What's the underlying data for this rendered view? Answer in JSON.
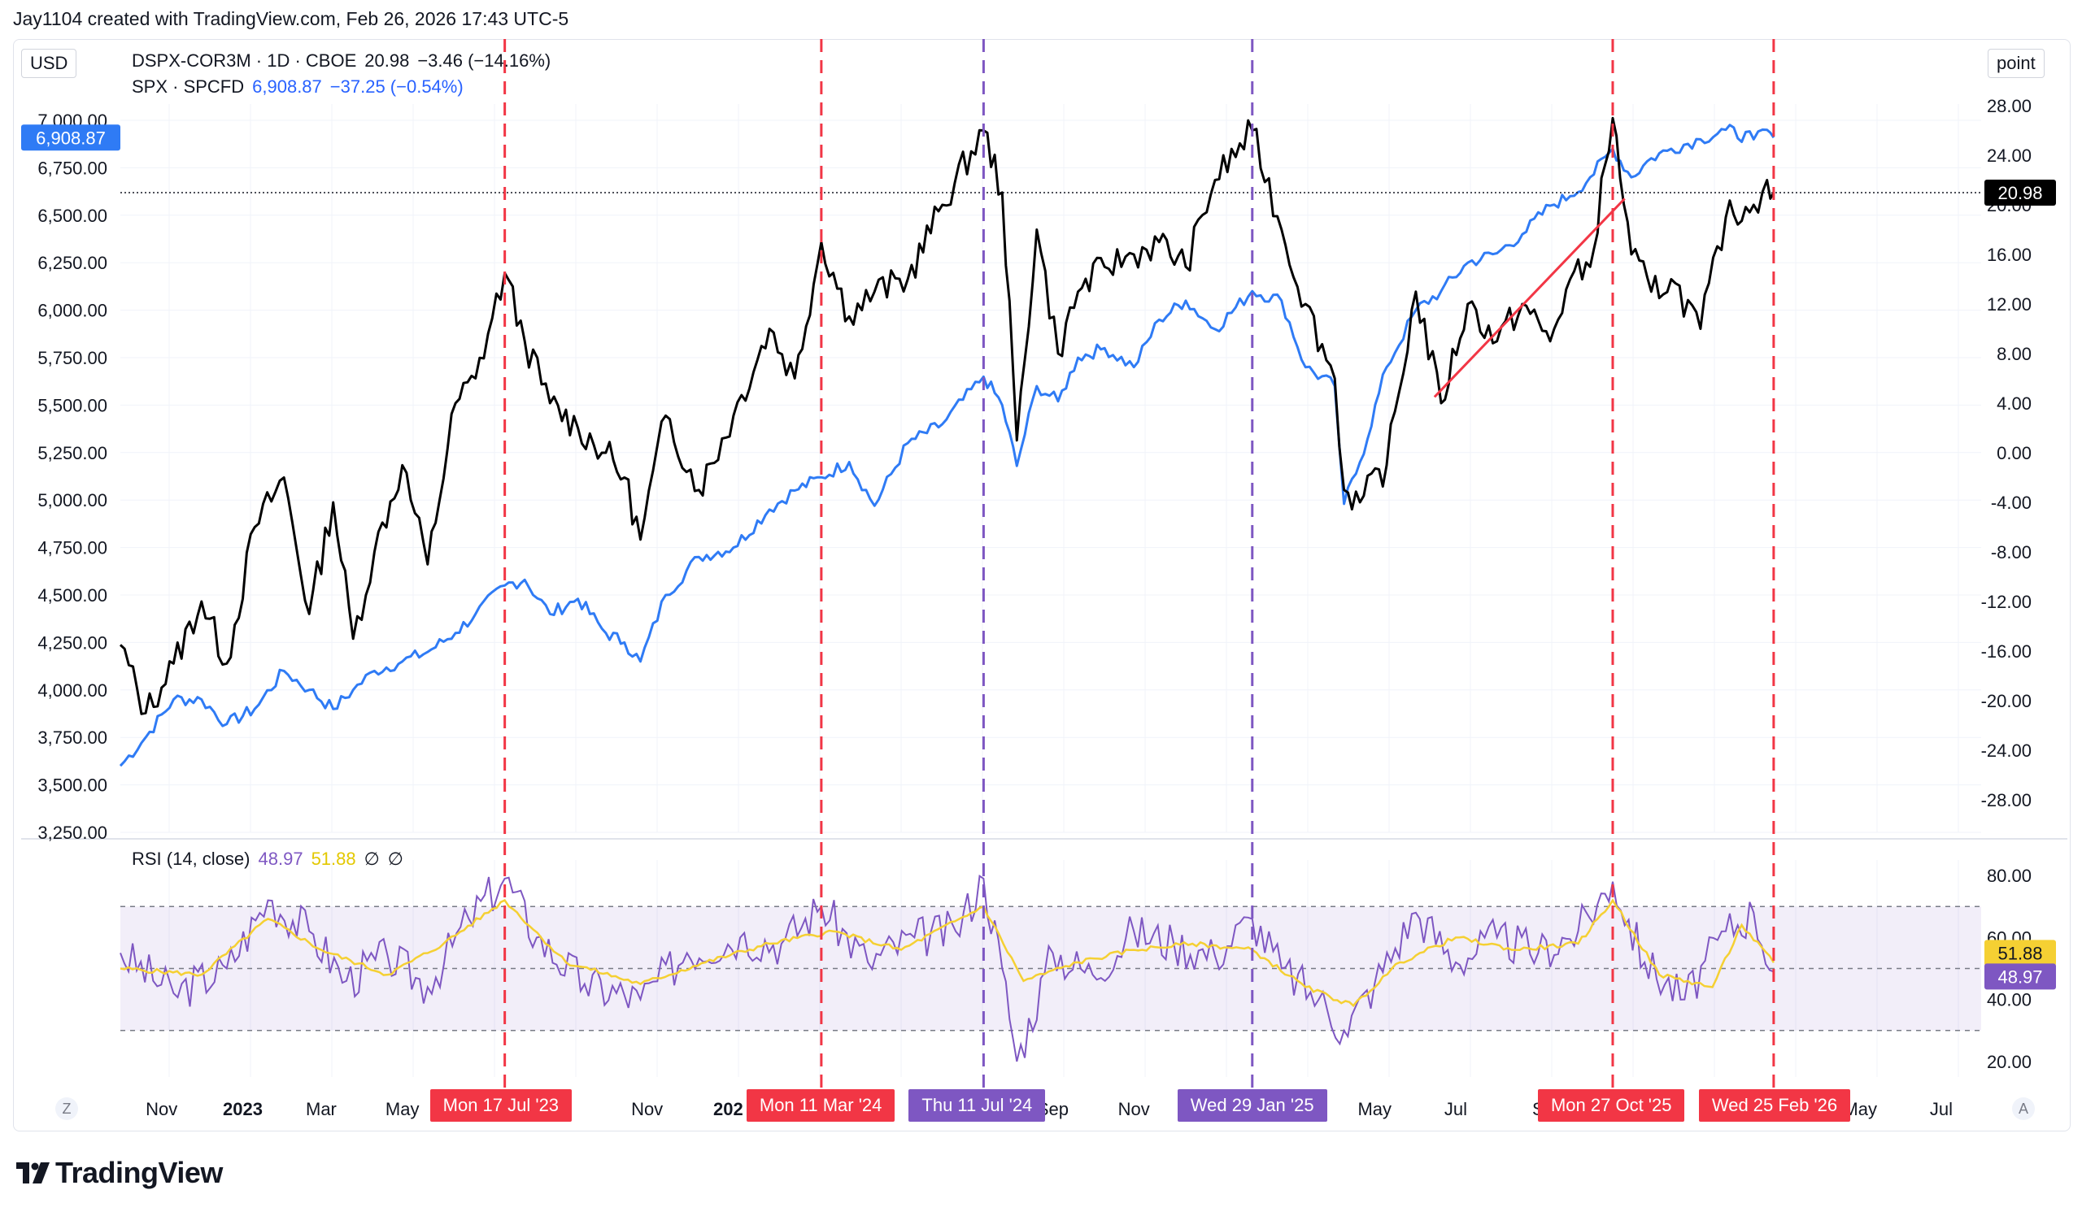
{
  "header": {
    "credit": "Jay1104 created with TradingView.com, Feb 26, 2026 17:43 UTC-5"
  },
  "toolbar": {
    "currency": "USD",
    "scale_mode": "point"
  },
  "legend": {
    "series1": {
      "symbol": "DSPX-COR3M · 1D · CBOE",
      "last": "20.98",
      "change": "−3.46 (−14.16%)",
      "color": "#000000"
    },
    "series2": {
      "symbol": "SPX · SPCFD",
      "last": "6,908.87",
      "change": "−37.25 (−0.54%)",
      "color": "#2962ff"
    },
    "rsi": {
      "label": "RSI (14, close)",
      "value": "48.97",
      "ma": "51.88",
      "extra1": "∅",
      "extra2": "∅"
    }
  },
  "badges": {
    "spx_last": "6,908.87",
    "dspx_last": "20.98",
    "rsi_ma": "51.88",
    "rsi_last": "48.97"
  },
  "colors": {
    "spx": "#2f7bf5",
    "dspx": "#000000",
    "rsi": "#7e57c2",
    "rsi_ma": "#f5d033",
    "red_marker": "#f23645",
    "purple_marker": "#7e57c2",
    "trendline": "#f23645"
  },
  "time_axis": {
    "labels": [
      "Nov",
      "2023",
      "Mar",
      "May",
      "Nov",
      "202",
      "Sep",
      "Nov",
      "May",
      "Jul",
      "S",
      "May",
      "Jul"
    ],
    "bold": [
      "2023",
      "202"
    ],
    "corner_left": "Z",
    "corner_right": "A"
  },
  "markers": [
    {
      "date_label": "Mon 17 Jul '23",
      "color": "red"
    },
    {
      "date_label": "Mon 11 Mar '24",
      "color": "red"
    },
    {
      "date_label": "Thu 11 Jul '24",
      "color": "purple"
    },
    {
      "date_label": "Wed 29 Jan '25",
      "color": "purple"
    },
    {
      "date_label": "Mon 27 Oct '25",
      "color": "red"
    },
    {
      "date_label": "Wed 25 Feb '26",
      "color": "red"
    }
  ],
  "chart_data": [
    {
      "type": "line",
      "title": "",
      "x_range": [
        "2022-10-01",
        "2026-07-31"
      ],
      "left_axis": {
        "ticks": [
          "3,250.00",
          "3,500.00",
          "3,750.00",
          "4,000.00",
          "4,250.00",
          "4,500.00",
          "4,750.00",
          "5,000.00",
          "5,250.00",
          "5,500.00",
          "5,750.00",
          "6,000.00",
          "6,250.00",
          "6,500.00",
          "6,750.00",
          "7,000.00"
        ],
        "ylim": [
          3250,
          7000
        ]
      },
      "right_axis": {
        "ticks": [
          "28.00",
          "24.00",
          "20.00",
          "16.00",
          "12.00",
          "8.00",
          "4.00",
          "0.00",
          "-4.00",
          "-8.00",
          "-12.00",
          "-16.00",
          "-20.00",
          "-24.00",
          "-28.00"
        ],
        "ylim": [
          -28,
          28
        ]
      },
      "series": [
        {
          "name": "DSPX-COR3M",
          "axis": "right",
          "x": [
            "2022-10-01",
            "2022-10-20",
            "2022-11-10",
            "2022-12-01",
            "2022-12-20",
            "2023-01-10",
            "2023-02-01",
            "2023-02-20",
            "2023-03-10",
            "2023-03-25",
            "2023-04-10",
            "2023-05-01",
            "2023-05-20",
            "2023-06-10",
            "2023-06-25",
            "2023-07-17",
            "2023-08-01",
            "2023-08-20",
            "2023-09-10",
            "2023-10-01",
            "2023-10-15",
            "2023-10-27",
            "2023-11-15",
            "2023-12-10",
            "2024-01-05",
            "2024-02-01",
            "2024-02-20",
            "2024-03-11",
            "2024-04-01",
            "2024-04-20",
            "2024-05-15",
            "2024-06-10",
            "2024-07-11",
            "2024-07-25",
            "2024-08-05",
            "2024-08-20",
            "2024-09-05",
            "2024-09-20",
            "2024-10-10",
            "2024-11-01",
            "2024-11-20",
            "2024-12-10",
            "2025-01-01",
            "2025-01-29",
            "2025-02-20",
            "2025-03-10",
            "2025-04-01",
            "2025-04-08",
            "2025-04-20",
            "2025-05-10",
            "2025-06-01",
            "2025-06-20",
            "2025-07-10",
            "2025-08-01",
            "2025-08-20",
            "2025-09-10",
            "2025-09-25",
            "2025-10-10",
            "2025-10-27",
            "2025-11-10",
            "2025-11-25",
            "2025-12-10",
            "2026-01-01",
            "2026-01-20",
            "2026-02-10",
            "2026-02-20",
            "2026-02-25"
          ],
          "values": [
            -15.5,
            -21,
            -17,
            -12,
            -17,
            -6,
            -2,
            -13,
            -4,
            -15,
            -8,
            -1,
            -9,
            4,
            6,
            14.5,
            9,
            4,
            2,
            0,
            -2,
            -7,
            3,
            -3,
            3,
            10,
            6,
            17,
            11,
            13,
            14,
            20,
            26,
            21,
            1,
            18,
            8,
            13,
            15,
            16,
            17,
            15,
            22,
            26,
            18,
            12,
            6,
            -3,
            -4,
            -1,
            13,
            4,
            12,
            9,
            12,
            9,
            14,
            15,
            27,
            16,
            13,
            14,
            10,
            19,
            20,
            22,
            21
          ],
          "color": "#000000"
        },
        {
          "name": "SPX",
          "axis": "left",
          "x": [
            "2022-10-01",
            "2022-10-20",
            "2022-11-10",
            "2022-12-01",
            "2022-12-20",
            "2023-01-10",
            "2023-02-01",
            "2023-02-20",
            "2023-03-10",
            "2023-03-25",
            "2023-04-10",
            "2023-05-01",
            "2023-05-20",
            "2023-06-10",
            "2023-06-25",
            "2023-07-17",
            "2023-08-01",
            "2023-08-20",
            "2023-09-10",
            "2023-10-01",
            "2023-10-15",
            "2023-10-27",
            "2023-11-15",
            "2023-12-10",
            "2024-01-05",
            "2024-02-01",
            "2024-02-20",
            "2024-03-11",
            "2024-04-01",
            "2024-04-20",
            "2024-05-15",
            "2024-06-10",
            "2024-07-11",
            "2024-07-25",
            "2024-08-05",
            "2024-08-20",
            "2024-09-05",
            "2024-09-20",
            "2024-10-10",
            "2024-11-01",
            "2024-11-20",
            "2024-12-10",
            "2025-01-01",
            "2025-01-29",
            "2025-02-20",
            "2025-03-10",
            "2025-04-01",
            "2025-04-08",
            "2025-04-20",
            "2025-05-10",
            "2025-06-01",
            "2025-06-20",
            "2025-07-10",
            "2025-08-01",
            "2025-08-20",
            "2025-09-10",
            "2025-09-25",
            "2025-10-10",
            "2025-10-27",
            "2025-11-10",
            "2025-11-25",
            "2025-12-10",
            "2026-01-01",
            "2026-01-20",
            "2026-02-10",
            "2026-02-20",
            "2026-02-25"
          ],
          "values": [
            3600,
            3750,
            3950,
            3950,
            3820,
            3900,
            4100,
            4000,
            3900,
            4000,
            4100,
            4150,
            4200,
            4300,
            4400,
            4550,
            4580,
            4400,
            4480,
            4300,
            4250,
            4150,
            4500,
            4700,
            4750,
            4950,
            5050,
            5120,
            5200,
            4970,
            5300,
            5400,
            5650,
            5500,
            5180,
            5600,
            5520,
            5750,
            5800,
            5700,
            5950,
            6050,
            5900,
            6100,
            6050,
            5700,
            5600,
            4980,
            5200,
            5700,
            6000,
            6100,
            6250,
            6300,
            6400,
            6550,
            6600,
            6700,
            6850,
            6700,
            6800,
            6850,
            6900,
            6950,
            6900,
            6950,
            6908.87
          ],
          "color": "#2f7bf5"
        }
      ],
      "annotations": {
        "trendline_from": [
          "2025-06-15",
          4.5
        ],
        "trendline_to": [
          "2025-11-05",
          20.5
        ]
      }
    },
    {
      "type": "line",
      "title": "RSI (14, close)",
      "ylim": [
        15,
        85
      ],
      "ticks": [
        "80.00",
        "60.00",
        "40.00",
        "20.00"
      ],
      "band": [
        30,
        70
      ],
      "midline": 50,
      "series": [
        {
          "name": "RSI",
          "x": [
            "2022-10-01",
            "2022-11-10",
            "2022-12-20",
            "2023-01-20",
            "2023-02-20",
            "2023-03-20",
            "2023-04-20",
            "2023-05-20",
            "2023-06-20",
            "2023-07-17",
            "2023-08-10",
            "2023-09-15",
            "2023-10-27",
            "2023-12-01",
            "2024-01-10",
            "2024-02-10",
            "2024-03-11",
            "2024-04-15",
            "2024-05-20",
            "2024-06-20",
            "2024-07-11",
            "2024-07-25",
            "2024-08-05",
            "2024-09-01",
            "2024-10-01",
            "2024-11-01",
            "2024-12-01",
            "2025-01-01",
            "2025-01-29",
            "2025-02-20",
            "2025-03-20",
            "2025-04-08",
            "2025-05-01",
            "2025-06-01",
            "2025-07-01",
            "2025-08-01",
            "2025-09-01",
            "2025-10-01",
            "2025-10-27",
            "2025-11-20",
            "2025-12-20",
            "2026-01-20",
            "2026-02-10",
            "2026-02-25"
          ],
          "values": [
            55,
            42,
            50,
            72,
            62,
            46,
            54,
            44,
            66,
            79,
            60,
            45,
            40,
            55,
            60,
            58,
            70,
            52,
            60,
            62,
            79,
            50,
            20,
            55,
            48,
            62,
            58,
            54,
            66,
            50,
            40,
            30,
            45,
            68,
            52,
            60,
            55,
            62,
            78,
            52,
            40,
            62,
            68,
            48.97
          ],
          "color": "#7e57c2"
        },
        {
          "name": "RSI MA",
          "x": [
            "2022-10-01",
            "2022-12-01",
            "2023-01-20",
            "2023-03-01",
            "2023-04-20",
            "2023-06-01",
            "2023-07-17",
            "2023-09-01",
            "2023-10-27",
            "2023-12-15",
            "2024-02-01",
            "2024-03-20",
            "2024-05-10",
            "2024-07-11",
            "2024-08-10",
            "2024-09-20",
            "2024-11-01",
            "2024-12-15",
            "2025-01-29",
            "2025-03-10",
            "2025-04-15",
            "2025-05-20",
            "2025-07-01",
            "2025-08-15",
            "2025-10-01",
            "2025-10-27",
            "2025-12-01",
            "2026-01-10",
            "2026-02-01",
            "2026-02-25"
          ],
          "values": [
            50,
            48,
            66,
            56,
            48,
            58,
            72,
            52,
            45,
            52,
            58,
            62,
            56,
            70,
            46,
            52,
            56,
            58,
            56,
            44,
            38,
            52,
            60,
            56,
            58,
            72,
            48,
            44,
            64,
            51.88
          ],
          "color": "#f5d033"
        }
      ]
    }
  ]
}
